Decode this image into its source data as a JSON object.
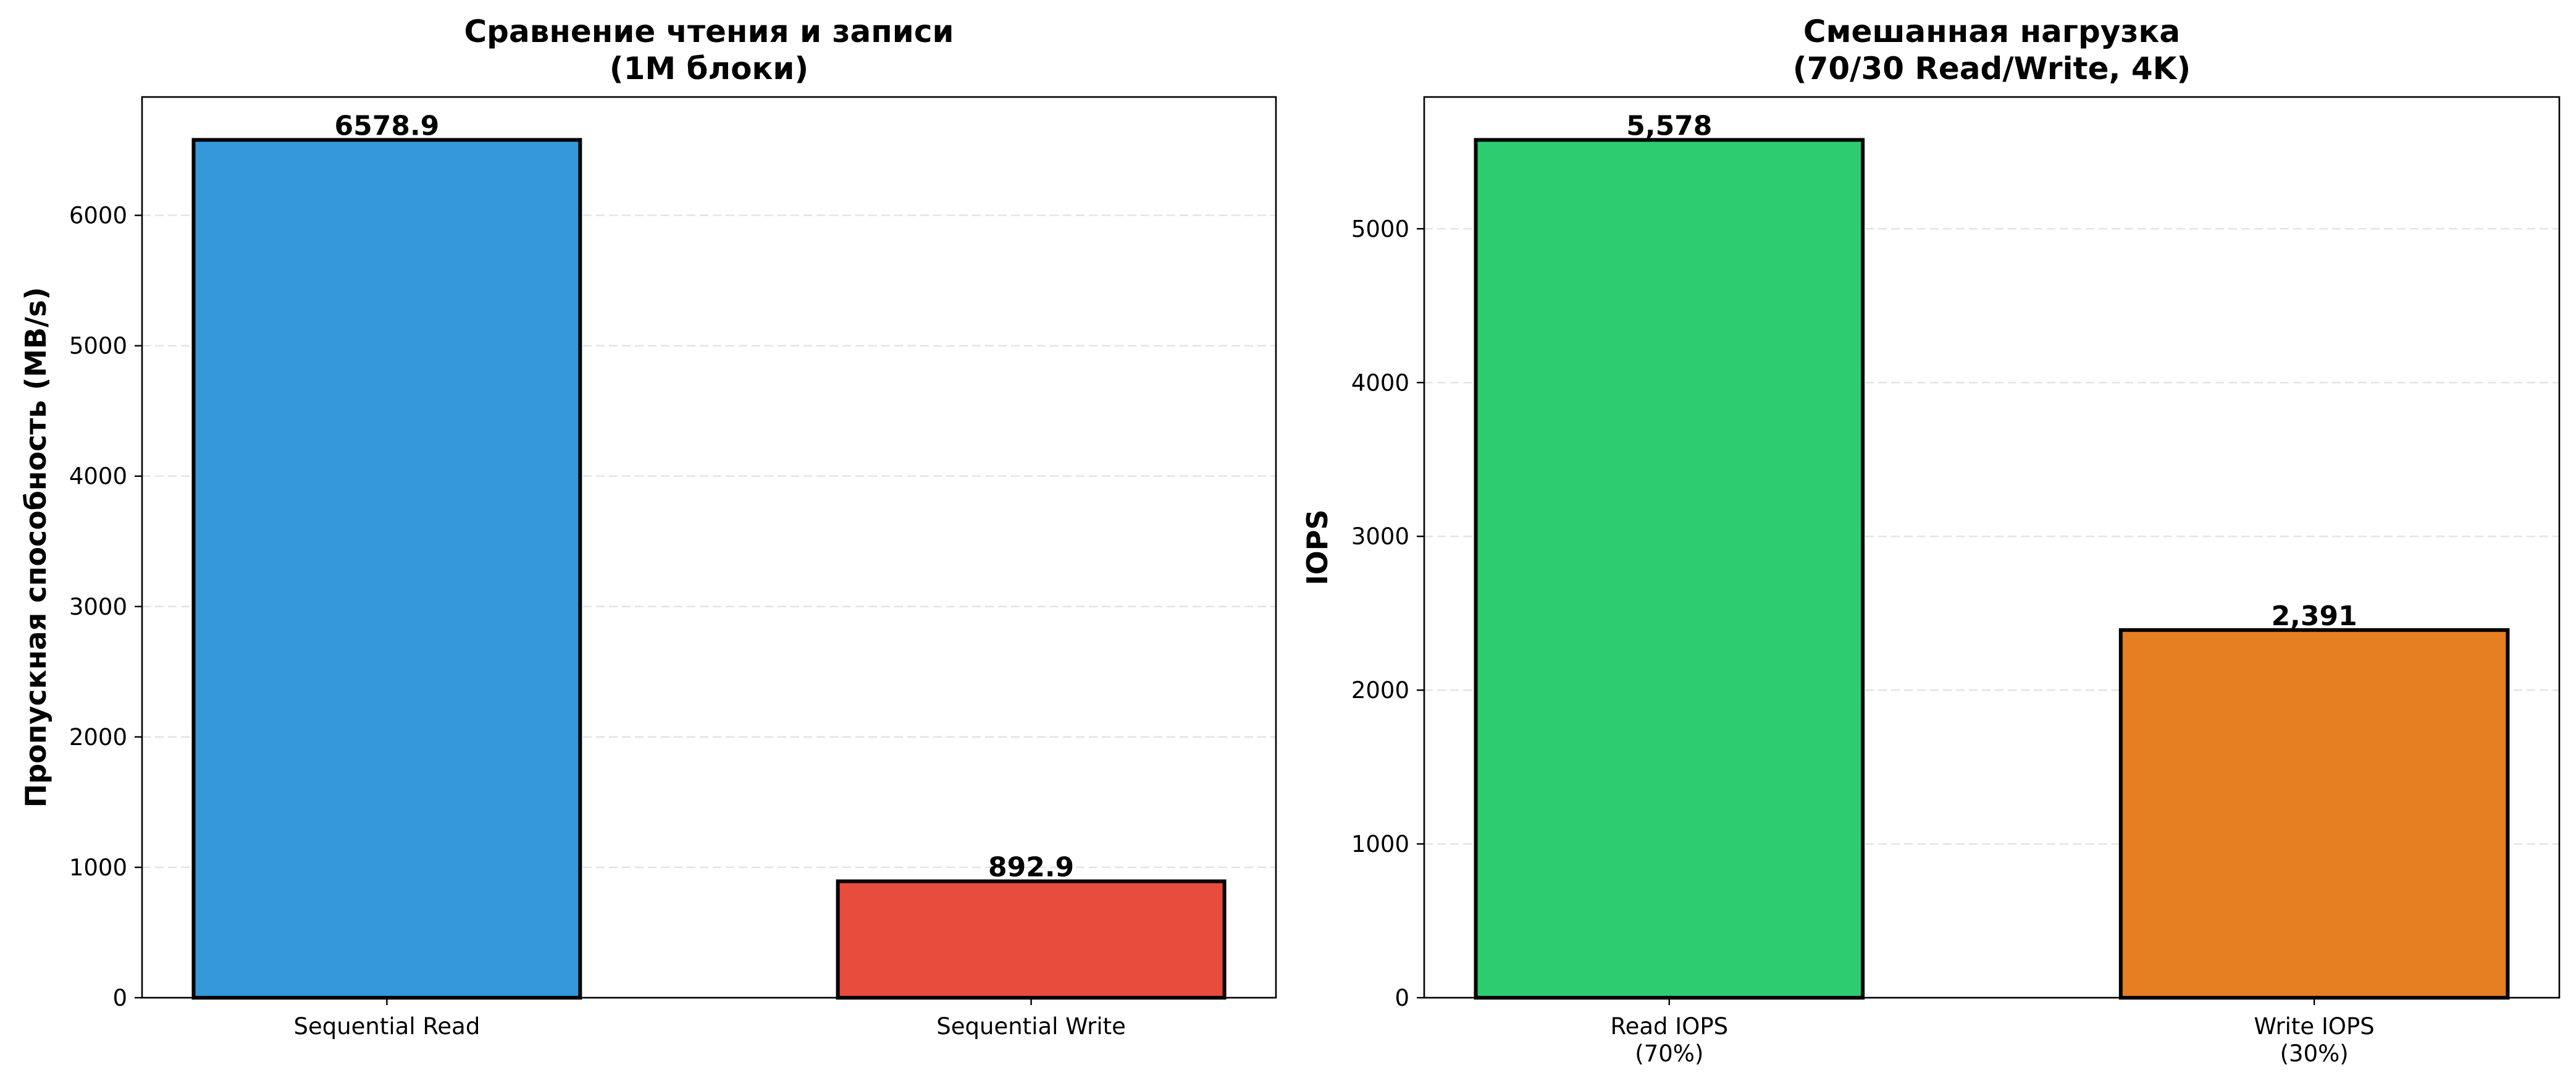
{
  "chart_data": [
    {
      "type": "bar",
      "title": "Сравнение чтения и записи\n(1M блоки)",
      "xlabel": "",
      "ylabel": "Пропускная способность (MB/s)",
      "categories": [
        "Sequential Read",
        "Sequential Write"
      ],
      "values": [
        6578.9,
        892.9
      ],
      "value_labels": [
        "6578.9",
        "892.9"
      ],
      "colors": [
        "#3498db",
        "#e74c3c"
      ],
      "ylim": [
        0,
        6907.8
      ],
      "yticks": [
        0,
        1000,
        2000,
        3000,
        4000,
        5000,
        6000
      ],
      "grid": "y, dashed",
      "legend": "none"
    },
    {
      "type": "bar",
      "title": "Смешанная нагрузка\n(70/30 Read/Write, 4K)",
      "xlabel": "",
      "ylabel": "IOPS",
      "categories": [
        "Read IOPS\n(70%)",
        "Write IOPS\n(30%)"
      ],
      "values": [
        5578,
        2391
      ],
      "value_labels": [
        "5,578",
        "2,391"
      ],
      "colors": [
        "#2ecc71",
        "#e67e22"
      ],
      "ylim": [
        0,
        5857
      ],
      "yticks": [
        0,
        1000,
        2000,
        3000,
        4000,
        5000
      ],
      "grid": "y, dashed",
      "legend": "none"
    }
  ]
}
